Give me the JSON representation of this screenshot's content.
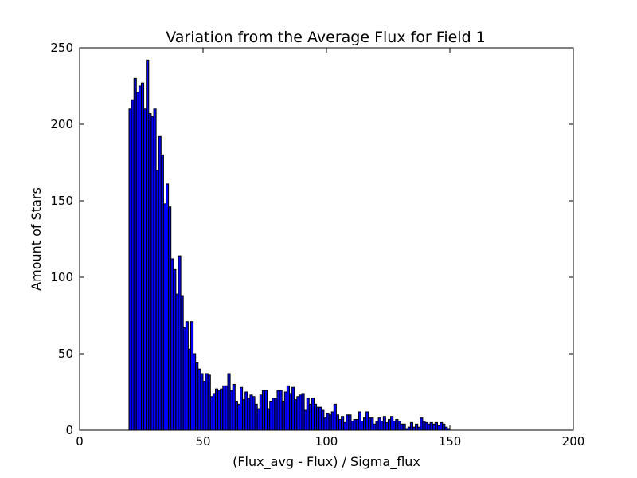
{
  "chart_data": {
    "type": "bar",
    "title": "Variation from the Average Flux for Field 1",
    "xlabel": "(Flux_avg - Flux) / Sigma_flux",
    "ylabel": "Amount of Stars",
    "xlim": [
      0,
      200
    ],
    "ylim": [
      0,
      250
    ],
    "xticks": [
      0,
      50,
      100,
      150,
      200
    ],
    "yticks": [
      0,
      50,
      100,
      150,
      200,
      250
    ],
    "grid": false,
    "bar_color": "#0000ff",
    "bin_start": 20,
    "bin_width": 1.0,
    "values": [
      210,
      216,
      230,
      221,
      225,
      227,
      210,
      242,
      207,
      205,
      210,
      170,
      192,
      180,
      148,
      161,
      146,
      112,
      105,
      89,
      114,
      88,
      67,
      71,
      53,
      71,
      50,
      44,
      40,
      37,
      32,
      37,
      36,
      22,
      24,
      27,
      26,
      27,
      29,
      29,
      37,
      26,
      30,
      19,
      17,
      28,
      20,
      25,
      21,
      23,
      22,
      17,
      14,
      23,
      26,
      26,
      14,
      19,
      21,
      21,
      26,
      26,
      19,
      25,
      29,
      24,
      28,
      20,
      22,
      23,
      24,
      13,
      21,
      17,
      21,
      17,
      15,
      15,
      13,
      8,
      11,
      10,
      12,
      17,
      10,
      7,
      9,
      5,
      10,
      10,
      6,
      7,
      7,
      12,
      6,
      8,
      12,
      8,
      8,
      4,
      6,
      8,
      6,
      9,
      5,
      7,
      9,
      6,
      7,
      6,
      4,
      4,
      1,
      2,
      5,
      2,
      4,
      2,
      8,
      6,
      5,
      4,
      5,
      4,
      5,
      3,
      5,
      4,
      2,
      1
    ]
  }
}
